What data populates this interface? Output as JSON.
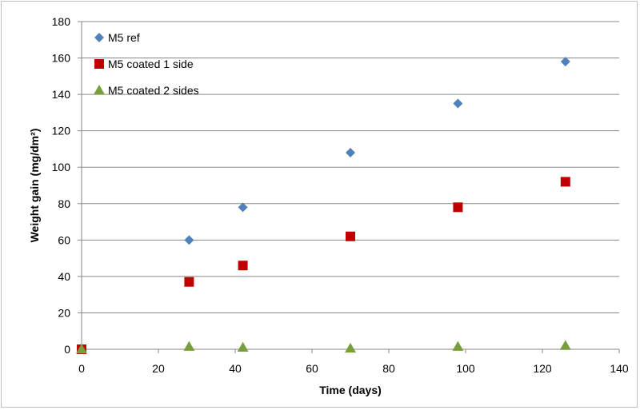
{
  "chart_data": {
    "type": "scatter",
    "title": "",
    "xlabel": "Time (days)",
    "ylabel": "Weight gain (mg/dm²)",
    "xlim": [
      0,
      140
    ],
    "ylim": [
      0,
      180
    ],
    "xticks": [
      0,
      20,
      40,
      60,
      80,
      100,
      120,
      140
    ],
    "yticks": [
      0,
      20,
      40,
      60,
      80,
      100,
      120,
      140,
      160,
      180
    ],
    "grid": "horizontal",
    "legend_position": "top-left",
    "series": [
      {
        "name": "M5 ref",
        "marker": "diamond",
        "color": "#4f81bd",
        "x": [
          0,
          28,
          42,
          70,
          98,
          126
        ],
        "y": [
          0,
          60,
          78,
          108,
          135,
          158
        ]
      },
      {
        "name": "M5 coated 1 side",
        "marker": "square",
        "color": "#c00000",
        "x": [
          0,
          28,
          42,
          70,
          98,
          126
        ],
        "y": [
          0,
          37,
          46,
          62,
          78,
          92
        ]
      },
      {
        "name": "M5 coated 2 sides",
        "marker": "triangle",
        "color": "#77a03c",
        "x": [
          0,
          28,
          42,
          70,
          98,
          126
        ],
        "y": [
          0,
          1.5,
          1,
          0.5,
          1.5,
          2
        ]
      }
    ]
  }
}
